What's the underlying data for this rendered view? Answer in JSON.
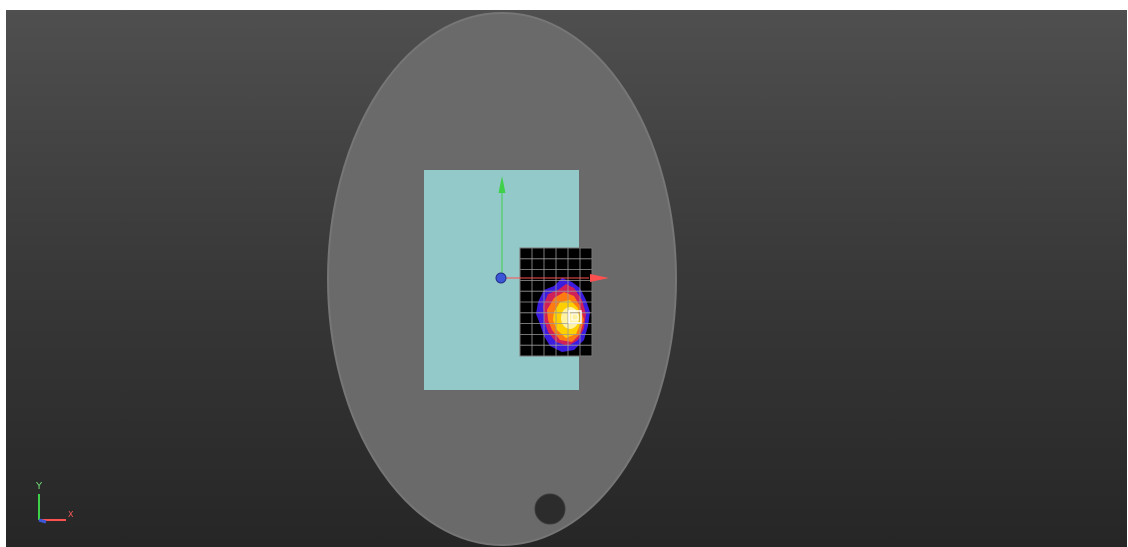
{
  "viewport": {
    "background_top": "#4f4f4f",
    "background_bottom": "#262626"
  },
  "phantom": {
    "fill": "#6a6a6a",
    "edge": "#767676",
    "marker_fill": "#2c2c2c"
  },
  "detector_panel": {
    "fill": "#94c9c9"
  },
  "dose_grid": {
    "rows": 10,
    "cols": 6,
    "background": "#000000",
    "grid_line": "#9a9a9a",
    "hotspot_colors": [
      "#3b1de0",
      "#d0205a",
      "#ff7a10",
      "#ffd000",
      "#fff2a0"
    ]
  },
  "gizmo": {
    "x_axis_color": "#ff5050",
    "y_axis_color": "#3fd04a",
    "z_axis_color": "#3b57d8"
  },
  "axis_indicator": {
    "y_label": "Y",
    "x_label": "X",
    "y_color": "#3fd04a",
    "x_color": "#ff5050",
    "z_color": "#3b57d8"
  }
}
